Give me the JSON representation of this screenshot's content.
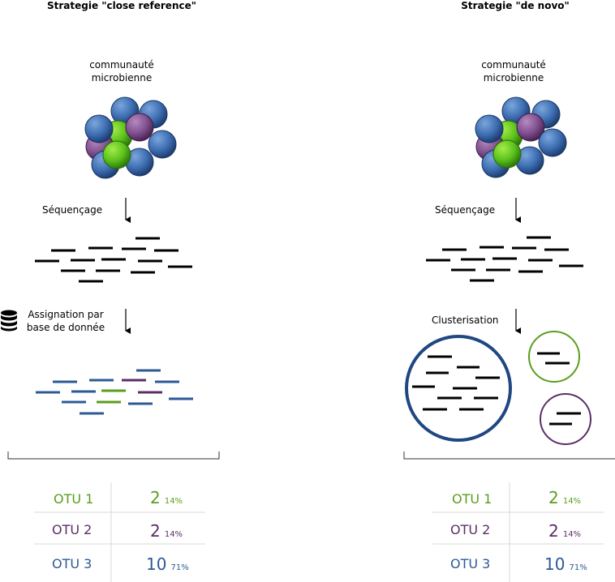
{
  "left": {
    "title": "Strategie \"close reference\"",
    "community_label": "communauté\nmicrobienne",
    "sequencing_label": "Séquençage",
    "assign_label": "Assignation par\nbase de donnée",
    "otus": [
      {
        "name": "OTU 1",
        "count": "2",
        "pct": "14%",
        "color": "#5a9e1e"
      },
      {
        "name": "OTU 2",
        "count": "2",
        "pct": "14%",
        "color": "#5b2d66"
      },
      {
        "name": "OTU 3",
        "count": "10",
        "pct": "71%",
        "color": "#2b5a95"
      }
    ]
  },
  "right": {
    "title": "Strategie \"de novo\"",
    "community_label": "communauté\nmicrobienne",
    "sequencing_label": "Séquençage",
    "cluster_label": "Clusterisation",
    "otus": [
      {
        "name": "OTU 1",
        "count": "2",
        "pct": "14%",
        "color": "#5a9e1e"
      },
      {
        "name": "OTU 2",
        "count": "2",
        "pct": "14%",
        "color": "#5b2d66"
      },
      {
        "name": "OTU 3",
        "count": "10",
        "pct": "71%",
        "color": "#2b5a95"
      }
    ]
  },
  "icons": {
    "database": "database-icon",
    "arrow": "arrow-down-icon"
  },
  "colors": {
    "blue": "#2b5a95",
    "green": "#5a9e1e",
    "purple": "#5b2d66",
    "black": "#000000"
  }
}
